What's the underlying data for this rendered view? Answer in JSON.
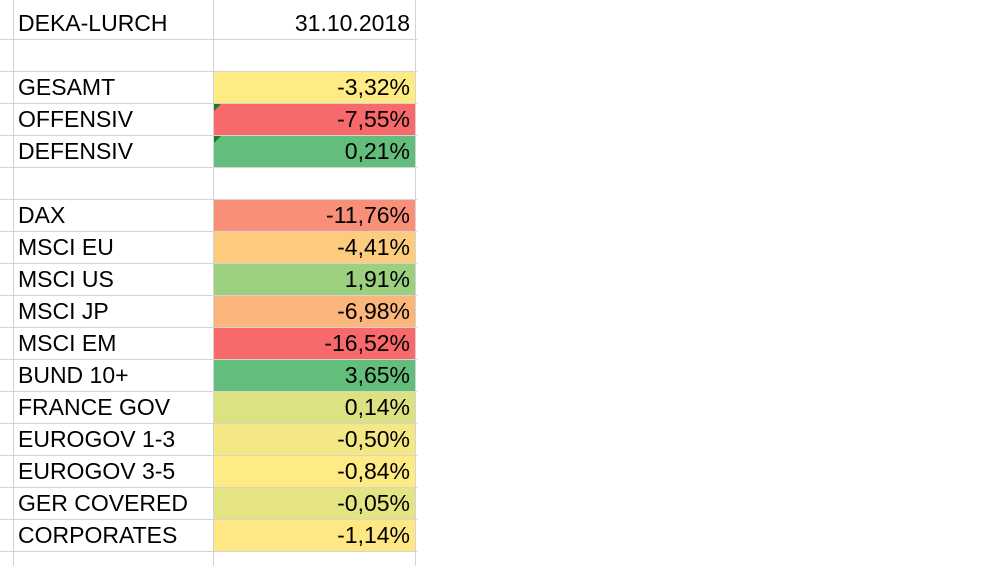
{
  "sheet": {
    "header": {
      "label": "DEKA-LURCH",
      "date": "31.10.2018"
    },
    "summary": [
      {
        "label": "GESAMT",
        "value": "-3,32%",
        "color": "#FFEB84",
        "flag": false
      },
      {
        "label": "OFFENSIV",
        "value": "-7,55%",
        "color": "#F8696B",
        "flag": true
      },
      {
        "label": "DEFENSIV",
        "value": "0,21%",
        "color": "#63BE7B",
        "flag": true
      }
    ],
    "indices": [
      {
        "label": "DAX",
        "value": "-11,76%",
        "color": "#F98F79"
      },
      {
        "label": "MSCI EU",
        "value": "-4,41%",
        "color": "#FDCB7E"
      },
      {
        "label": "MSCI US",
        "value": "1,91%",
        "color": "#9CCF7E"
      },
      {
        "label": "MSCI JP",
        "value": "-6,98%",
        "color": "#FCB67C"
      },
      {
        "label": "MSCI EM",
        "value": "-16,52%",
        "color": "#F8696B"
      },
      {
        "label": "BUND 10+",
        "value": "3,65%",
        "color": "#63BE7B"
      },
      {
        "label": "FRANCE GOV",
        "value": "0,14%",
        "color": "#DCE182"
      },
      {
        "label": "EUROGOV 1-3",
        "value": "-0,50%",
        "color": "#F3E884"
      },
      {
        "label": "EUROGOV 3-5",
        "value": "-0,84%",
        "color": "#FFEB84"
      },
      {
        "label": "GER COVERED",
        "value": "-0,05%",
        "color": "#E4E483"
      },
      {
        "label": "CORPORATES",
        "value": "-1,14%",
        "color": "#FFE784"
      }
    ]
  }
}
